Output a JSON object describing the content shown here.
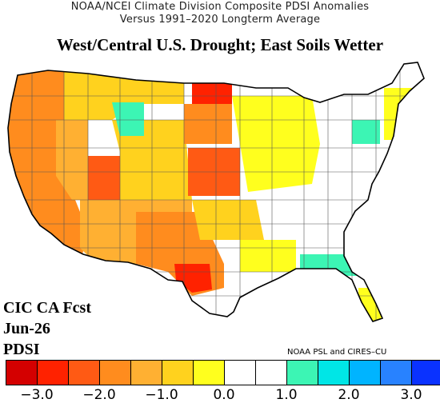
{
  "header": {
    "line1": "NOAA/NCEI Climate Division Composite PDSI Anomalies",
    "line2": "Versus 1991–2020 Longterm Average",
    "headline": "West/Central U.S. Drought; East Soils Wetter"
  },
  "forecast": {
    "label1": "CIC CA Fcst",
    "label2": "Jun-26",
    "label3": "PDSI"
  },
  "credit": "NOAA PSL and CIRES–CU",
  "colors": {
    "outline": "#000000",
    "division_line": "#555555",
    "background": "#ffffff"
  },
  "legend": {
    "colors": [
      "#d40000",
      "#ff2200",
      "#ff5a14",
      "#ff8c1e",
      "#ffb032",
      "#ffd21e",
      "#ffff1e",
      "#ffffff",
      "#ffffff",
      "#3cf5b4",
      "#00e6e6",
      "#00b4ff",
      "#2882ff",
      "#0a32ff"
    ],
    "tick_labels": [
      "−3.0",
      "−2.0",
      "−1.0",
      "0.0",
      "1.0",
      "2.0",
      "3.0"
    ]
  },
  "regions": [
    {
      "name": "pacific-northwest",
      "color": "#ff8c1e"
    },
    {
      "name": "northern-california",
      "color": "#ff8c1e"
    },
    {
      "name": "great-basin",
      "color": "#ffb032"
    },
    {
      "name": "utah",
      "color": "#ff5a14"
    },
    {
      "name": "southwest",
      "color": "#ffb032"
    },
    {
      "name": "west-texas",
      "color": "#ff8c1e"
    },
    {
      "name": "central-texas",
      "color": "#ff2200"
    },
    {
      "name": "montana",
      "color": "#ffd21e"
    },
    {
      "name": "wyoming-colorado",
      "color": "#ffd21e"
    },
    {
      "name": "north-dakota",
      "color": "#ff2200"
    },
    {
      "name": "south-dakota",
      "color": "#ff8c1e"
    },
    {
      "name": "nebraska-kansas",
      "color": "#ff5a14"
    },
    {
      "name": "oklahoma",
      "color": "#ffd21e"
    },
    {
      "name": "upper-midwest",
      "color": "#ffff1e"
    },
    {
      "name": "gulf-coast",
      "color": "#ffff1e"
    },
    {
      "name": "florida",
      "color": "#ffff1e"
    },
    {
      "name": "wyoming-wet",
      "color": "#3cf5b4"
    },
    {
      "name": "carolinas-wet",
      "color": "#3cf5b4"
    },
    {
      "name": "mid-atlantic-wet",
      "color": "#3cf5b4"
    },
    {
      "name": "northeast-dry",
      "color": "#ffff1e"
    }
  ]
}
